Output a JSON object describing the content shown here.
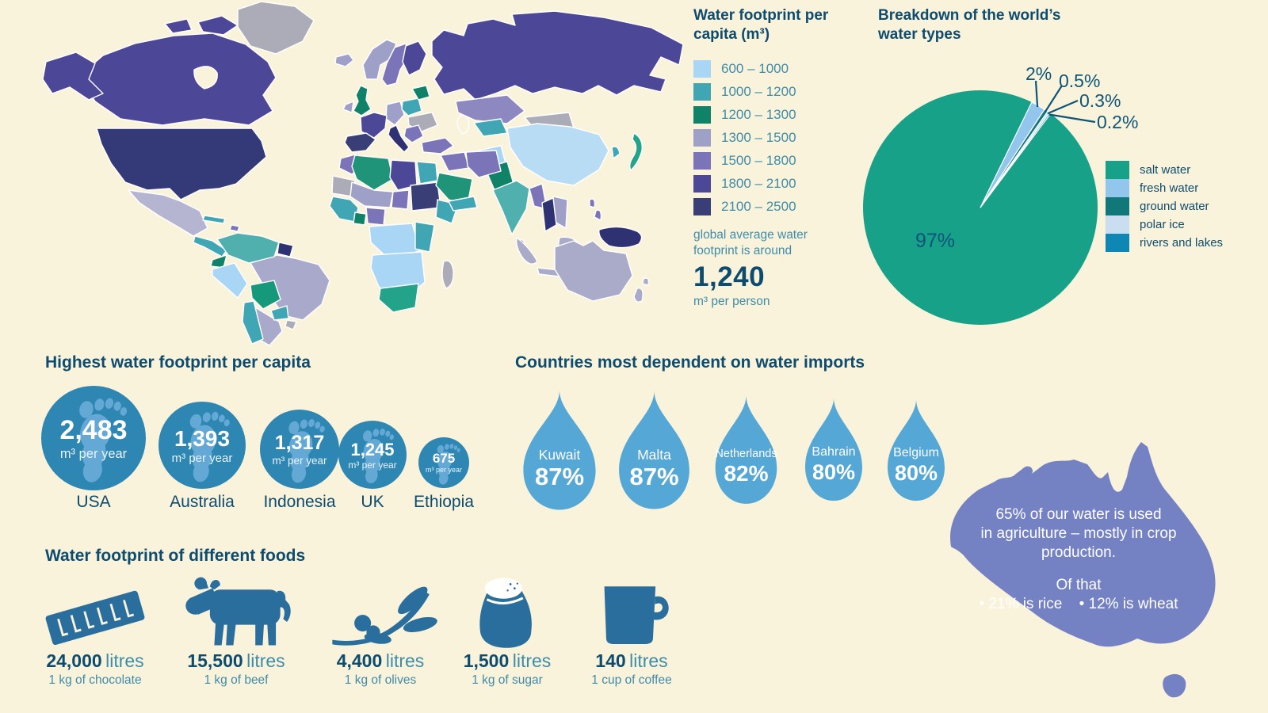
{
  "page": {
    "background": "#FAF3DC"
  },
  "map": {
    "regions": {
      "russia": "#4C4796",
      "canada": "#4C4796",
      "greenland": "#ABACB8",
      "alaska": "#4C4796",
      "usa": "#343A77",
      "mexico": "#B5B5D2",
      "central_america": "#41A6B4",
      "cuba": "#41A6B4",
      "hispaniola": "#7B74B8",
      "colombia_venezuela": "#4FB0AD",
      "guyanas": "#2E3272",
      "ecuador": "#108268",
      "peru": "#A9D6F5",
      "brazil": "#A9AACB",
      "bolivia": "#16987B",
      "paraguay": "#41A6B4",
      "chile": "#41A6B4",
      "argentina": "#A9AACB",
      "uruguay": "#ABACB8",
      "iceland": "#9FA0C8",
      "uk": "#108268",
      "ireland": "#9FA0C8",
      "norway": "#9FA0C8",
      "sweden": "#7B74B8",
      "finland": "#4C4796",
      "france": "#4C4796",
      "iberia": "#3A3E77",
      "central_europe": "#9FA0C8",
      "poland": "#41A6B4",
      "baltics": "#108268",
      "eastern_europe": "#ABACB8",
      "italy": "#2E3272",
      "balkans": "#7B74B8",
      "turkey": "#7B74B8",
      "kazakhstan": "#8E88C0",
      "mongolia": "#ABACB8",
      "china": "#B8DCF4",
      "central_asia": "#41A6B4",
      "afghanistan": "#A9D6F5",
      "pakistan": "#108268",
      "india": "#4FB0AD",
      "sri_lanka": "#7B74B8",
      "myanmar": "#7B74B8",
      "thailand": "#2E3272",
      "indochina": "#9FA0C8",
      "korea": "#41A6B4",
      "japan": "#23A38A",
      "philippines": "#7B74B8",
      "indonesia": "#A9ABC9",
      "new_guinea": "#2E3272",
      "australia": "#A9ABC9",
      "new_zealand": "#A9ABC9",
      "morocco": "#7B74B8",
      "algeria": "#1F9478",
      "libya": "#4C4796",
      "egypt": "#41A6B4",
      "mauritania": "#ABACB8",
      "sahel": "#9FA0C8",
      "chad": "#7B74B8",
      "sudan": "#3A3E77",
      "west_africa": "#41A6B4",
      "ghana": "#108268",
      "nigeria": "#7B74B8",
      "horn_africa": "#41A6B4",
      "central_africa": "#A9D6F5",
      "east_africa": "#41A6B4",
      "southern_africa": "#A9D6F5",
      "south_africa": "#23A38A",
      "madagascar": "#ABACB8",
      "middle_east": "#7B74B8",
      "iran": "#7B74B8",
      "saudi": "#1F9478",
      "yemen_oman": "#41A6B4",
      "water": "#FAF3DC"
    }
  },
  "map_legend": {
    "title": "Water footprint per capita (m³)",
    "items": [
      {
        "range": "600 – 1000",
        "color": "#A9D6F5"
      },
      {
        "range": "1000 – 1200",
        "color": "#41A6B4"
      },
      {
        "range": "1200 – 1300",
        "color": "#108268"
      },
      {
        "range": "1300 – 1500",
        "color": "#9FA0C8"
      },
      {
        "range": "1500 – 1800",
        "color": "#7B74B8"
      },
      {
        "range": "1800 – 2100",
        "color": "#4C4796"
      },
      {
        "range": "2100 – 2500",
        "color": "#3A3E77"
      }
    ],
    "note_line1": "global average water",
    "note_line2": "footprint is around",
    "average_value": "1,240",
    "average_unit": "m³ per person"
  },
  "chart_data": [
    {
      "type": "pie",
      "title": "Breakdown of the world’s water types",
      "labels": [
        "salt water",
        "fresh water",
        "ground water",
        "polar ice",
        "rivers and lakes"
      ],
      "values": [
        97,
        2,
        0.5,
        0.3,
        0.2
      ],
      "value_labels": [
        "97%",
        "2%",
        "0.5%",
        "0.3%",
        "0.2%"
      ],
      "colors": [
        "#18A189",
        "#93C6EC",
        "#11787A",
        "#C9DEF0",
        "#0F87B4"
      ],
      "legend_position": "right",
      "small_slice_start_deg": 26
    },
    {
      "type": "proportional-circle",
      "title": "Highest water footprint per capita",
      "categories": [
        "USA",
        "Australia",
        "Indonesia",
        "UK",
        "Ethiopia"
      ],
      "values": [
        2483,
        1393,
        1317,
        1245,
        675
      ],
      "unit": "m³ per year",
      "circle_color": "#2E86B3",
      "footprint_color": "#64A9D6",
      "items": [
        {
          "country": "USA",
          "display": "2,483",
          "unit": "m³ per year"
        },
        {
          "country": "Australia",
          "display": "1,393",
          "unit": "m³ per year"
        },
        {
          "country": "Indonesia",
          "display": "1,317",
          "unit": "m³ per year"
        },
        {
          "country": "UK",
          "display": "1,245",
          "unit": "m³ per year"
        },
        {
          "country": "Ethiopia",
          "display": "675",
          "unit": "m³ per year"
        }
      ]
    },
    {
      "type": "proportional-drop",
      "title": "Countries most dependent on water imports",
      "categories": [
        "Kuwait",
        "Malta",
        "Netherlands",
        "Bahrain",
        "Belgium"
      ],
      "values": [
        87,
        87,
        82,
        80,
        80
      ],
      "unit": "%",
      "drop_color": "#55A7D6",
      "items": [
        {
          "country": "Kuwait",
          "display": "87%"
        },
        {
          "country": "Malta",
          "display": "87%"
        },
        {
          "country": "Netherlands",
          "display": "82%"
        },
        {
          "country": "Bahrain",
          "display": "80%"
        },
        {
          "country": "Belgium",
          "display": "80%"
        }
      ]
    },
    {
      "type": "pictogram",
      "title": "Water footprint of different foods",
      "categories": [
        "1 kg of chocolate",
        "1 kg of beef",
        "1 kg of olives",
        "1 kg of sugar",
        "1 cup of coffee"
      ],
      "values": [
        24000,
        15500,
        4400,
        1500,
        140
      ],
      "unit": "litres",
      "icon_color": "#2A6E9E",
      "items": [
        {
          "icon": "chocolate-bar",
          "display": "24,000",
          "unit": "litres",
          "desc": "1 kg of chocolate"
        },
        {
          "icon": "cow",
          "display": "15,500",
          "unit": "litres",
          "desc": "1 kg of beef"
        },
        {
          "icon": "olive-branch",
          "display": "4,400",
          "unit": "litres",
          "desc": "1 kg of olives"
        },
        {
          "icon": "sugar-sack",
          "display": "1,500",
          "unit": "litres",
          "desc": "1 kg of sugar"
        },
        {
          "icon": "coffee-mug",
          "display": "140",
          "unit": "litres",
          "desc": "1 cup of coffee"
        }
      ]
    }
  ],
  "australia_fact": {
    "shape_color": "#7482C4",
    "line1": "65% of our water is used",
    "line2": "in agriculture – mostly in crop",
    "line3": "production.",
    "subhead": "Of that",
    "bullet1": "• 21% is rice",
    "bullet2": "• 12% is wheat"
  }
}
